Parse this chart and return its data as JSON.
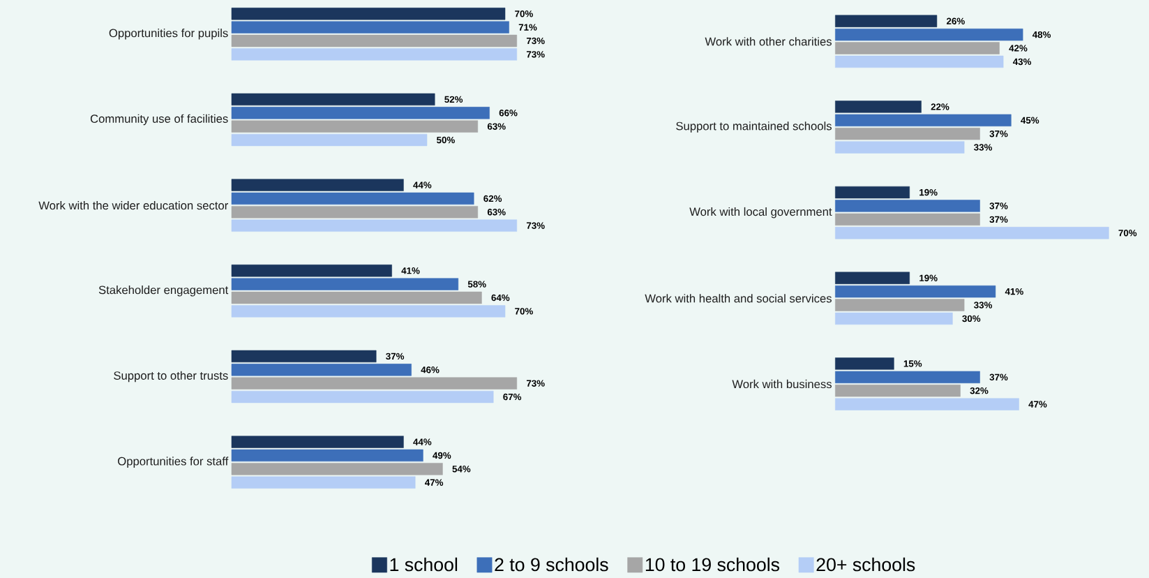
{
  "chart_data": [
    {
      "type": "bar",
      "orientation": "horizontal",
      "legend": "bottom",
      "categories": [
        "Opportunities for pupils",
        "Community use of facilities",
        "Work with the wider education sector",
        "Stakeholder engagement",
        "Support to other trusts",
        "Opportunities for staff"
      ],
      "series": [
        {
          "name": "1 school",
          "color": "#1b365d",
          "values": [
            70,
            52,
            44,
            41,
            37,
            44
          ],
          "value_labels": [
            "70%",
            "52%",
            "44%",
            "41%",
            "37%",
            "44%"
          ]
        },
        {
          "name": "2 to 9 schools",
          "color": "#3d6fb9",
          "values": [
            71,
            66,
            62,
            58,
            46,
            49
          ],
          "value_labels": [
            "71%",
            "66%",
            "62%",
            "58%",
            "46%",
            "49%"
          ]
        },
        {
          "name": "10 to 19 schools",
          "color": "#a6a6a6",
          "values": [
            73,
            63,
            63,
            64,
            73,
            54
          ],
          "value_labels": [
            "73%",
            "63%",
            "63%",
            "64%",
            "73%",
            "54%"
          ]
        },
        {
          "name": "20+ schools",
          "color": "#b4cdf6",
          "values": [
            73,
            50,
            73,
            70,
            67,
            47
          ],
          "value_labels": [
            "73%",
            "50%",
            "73%",
            "70%",
            "67%",
            "47%"
          ]
        }
      ]
    },
    {
      "type": "bar",
      "orientation": "horizontal",
      "categories": [
        "Work with other charities",
        "Support to maintained schools",
        "Work with local government",
        "Work with health and social services",
        "Work with business"
      ],
      "series": [
        {
          "color": "#1b365d",
          "values": [
            26,
            22,
            19,
            19,
            15
          ],
          "value_labels": [
            "26%",
            "22%",
            "19%",
            "19%",
            "15%"
          ]
        },
        {
          "color": "#3d6fb9",
          "values": [
            48,
            45,
            37,
            41,
            37
          ],
          "value_labels": [
            "48%",
            "45%",
            "37%",
            "41%",
            "37%"
          ]
        },
        {
          "color": "#a6a6a6",
          "values": [
            42,
            37,
            37,
            33,
            32
          ],
          "value_labels": [
            "42%",
            "37%",
            "37%",
            "33%",
            "32%"
          ]
        },
        {
          "color": "#b4cdf6",
          "values": [
            43,
            33,
            70,
            30,
            47
          ],
          "value_labels": [
            "43%",
            "33%",
            "70%",
            "30%",
            "47%"
          ]
        }
      ]
    }
  ]
}
